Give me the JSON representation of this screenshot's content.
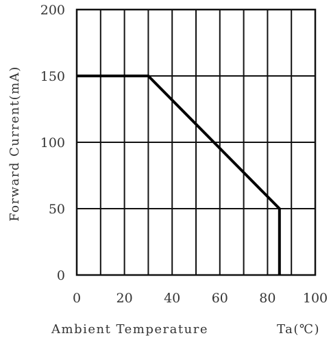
{
  "chart_data": {
    "type": "line",
    "xlabel": "Ambient Temperature",
    "xunit": "Ta(℃)",
    "ylabel": "Forward Current(mA)",
    "xlim": [
      0,
      100
    ],
    "ylim": [
      0,
      200
    ],
    "x_ticks": [
      0,
      20,
      40,
      60,
      80,
      100
    ],
    "y_ticks": [
      0,
      50,
      100,
      150,
      200
    ],
    "x_ticks_labels": [
      "0",
      "20",
      "40",
      "60",
      "80",
      "100"
    ],
    "y_ticks_labels": [
      "0",
      "50",
      "100",
      "150",
      "200"
    ],
    "x_grid_step": 10,
    "y_grid_step": 50,
    "grid": true,
    "series": [
      {
        "x": [
          0,
          30,
          85,
          85
        ],
        "y": [
          150,
          150,
          50,
          0
        ]
      }
    ],
    "line_color": "#000000",
    "grid_color": "#111111"
  }
}
